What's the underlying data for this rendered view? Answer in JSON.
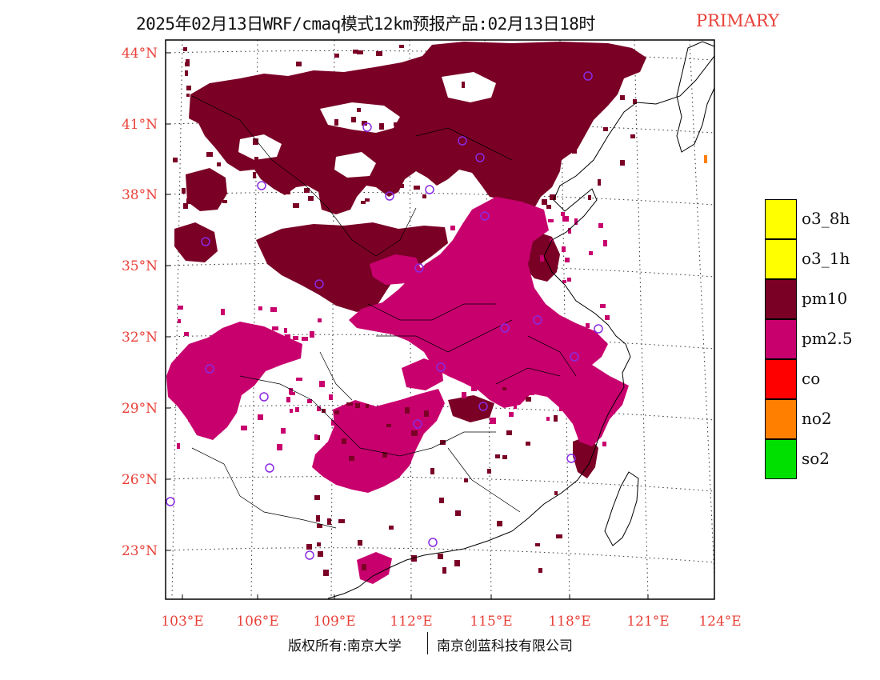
{
  "title": {
    "text": "2025年02月13日WRF/cmaq模式12km预报产品:02月13日18时",
    "tag": "PRIMARY"
  },
  "axes": {
    "lat_labels": [
      "44°N",
      "41°N",
      "38°N",
      "35°N",
      "32°N",
      "29°N",
      "26°N",
      "23°N"
    ],
    "lon_labels": [
      "103°E",
      "106°E",
      "109°E",
      "112°E",
      "115°E",
      "118°E",
      "121°E",
      "124°E"
    ],
    "label_color": "#e8423a"
  },
  "legend": {
    "items": [
      {
        "label": "o3_8h",
        "color": "#ffff00"
      },
      {
        "label": "o3_1h",
        "color": "#ffff00"
      },
      {
        "label": "pm10",
        "color": "#7a0026"
      },
      {
        "label": "pm2.5",
        "color": "#c8006e"
      },
      {
        "label": "co",
        "color": "#ff0000"
      },
      {
        "label": "no2",
        "color": "#ff7f00"
      },
      {
        "label": "so2",
        "color": "#00e000"
      }
    ]
  },
  "colors": {
    "pm10": "#7a0026",
    "pm25": "#c8006e",
    "station": "#8a2be2",
    "no2": "#ff7f00"
  },
  "credit": {
    "left": "版权所有:南京大学",
    "right": "南京创蓝科技有限公司"
  }
}
